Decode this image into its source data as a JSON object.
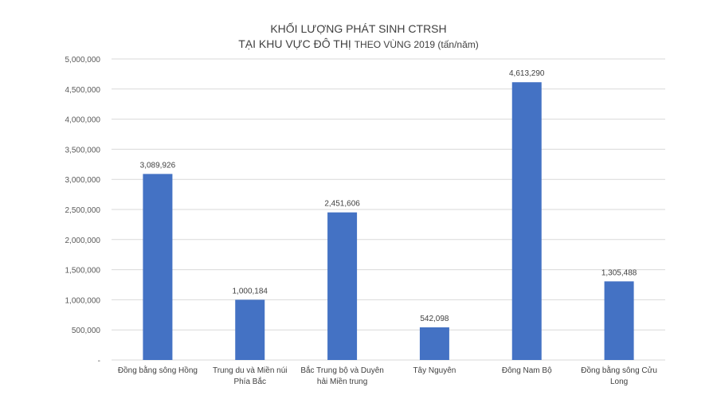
{
  "chart_data": {
    "type": "bar",
    "title": "KHỐI LƯỢNG PHÁT SINH CTRSH",
    "subtitle_main": "TẠI KHU VỰC ĐÔ THỊ",
    "subtitle_small": "THEO VÙNG 2019 (tấn/năm)",
    "categories": [
      [
        "Đồng bằng sông Hồng"
      ],
      [
        "Trung du và Miền núi",
        "Phía Bắc"
      ],
      [
        "Bắc Trung bộ và Duyên",
        "hải Miền trung"
      ],
      [
        "Tây Nguyên"
      ],
      [
        "Đông Nam Bộ"
      ],
      [
        "Đồng bằng sông Cửu",
        "Long"
      ]
    ],
    "values": [
      3089926,
      1000184,
      2451606,
      542098,
      4613290,
      1305488
    ],
    "value_labels": [
      "3,089,926",
      "1,000,184",
      "2,451,606",
      "542,098",
      "4,613,290",
      "1,305,488"
    ],
    "y_ticks": [
      0,
      500000,
      1000000,
      1500000,
      2000000,
      2500000,
      3000000,
      3500000,
      4000000,
      4500000,
      5000000
    ],
    "y_tick_labels": [
      "-",
      "500,000",
      "1,000,000",
      "1,500,000",
      "2,000,000",
      "2,500,000",
      "3,000,000",
      "3,500,000",
      "4,000,000",
      "4,500,000",
      "5,000,000"
    ],
    "ylim": [
      0,
      5000000
    ],
    "grid": true,
    "legend": "none",
    "bar_color": "#4472C4",
    "grid_color": "#D9D9D9"
  }
}
